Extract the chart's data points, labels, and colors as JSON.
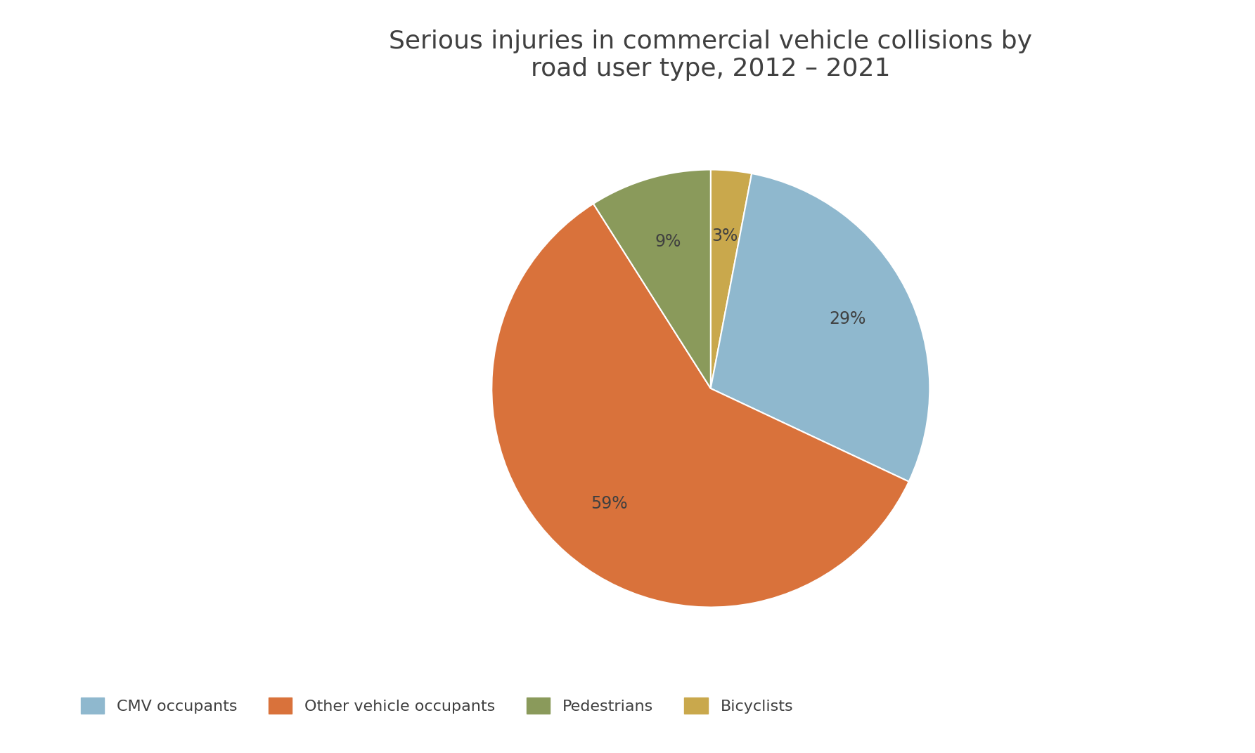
{
  "title": "Serious injuries in commercial vehicle collisions by\nroad user type, 2012 – 2021",
  "title_fontsize": 26,
  "legend_labels": [
    "CMV occupants",
    "Other vehicle occupants",
    "Pedestrians",
    "Bicyclists"
  ],
  "legend_colors": [
    "#8FB8CE",
    "#D9723B",
    "#8A9A5B",
    "#C9A84C"
  ],
  "plot_values": [
    3,
    29,
    59,
    9
  ],
  "plot_colors": [
    "#C9A84C",
    "#8FB8CE",
    "#D9723B",
    "#8A9A5B"
  ],
  "plot_labels": [
    "Bicyclists",
    "CMV occupants",
    "Other vehicle occupants",
    "Pedestrians"
  ],
  "autopct_fontsize": 17,
  "legend_fontsize": 16,
  "background_color": "#FFFFFF",
  "text_color": "#404040"
}
